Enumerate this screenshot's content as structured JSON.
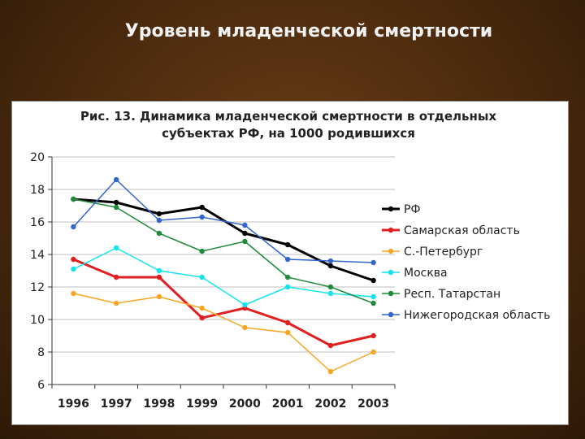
{
  "slide": {
    "title": "Уровень младенческой смертности"
  },
  "chart_data": {
    "type": "line",
    "title": "Рис. 13. Динамика младенческой смертности в отдельных субъектах РФ, на 1000 родившихся",
    "title_lines": [
      "Рис. 13. Динамика младенческой смертности в отдельных",
      "субъектах РФ, на 1000 родившихся"
    ],
    "categories": [
      "1996",
      "1997",
      "1998",
      "1999",
      "2000",
      "2001",
      "2002",
      "2003"
    ],
    "ylim": [
      6,
      20
    ],
    "yticks": [
      6,
      8,
      10,
      12,
      14,
      16,
      18,
      20
    ],
    "grid": true,
    "legend_position": "right",
    "series": [
      {
        "name": "РФ",
        "color": "#000000",
        "width": 3,
        "values": [
          17.4,
          17.2,
          16.5,
          16.9,
          15.3,
          14.6,
          13.3,
          12.4
        ]
      },
      {
        "name": "Самарская область",
        "color": "#e02020",
        "width": 3,
        "values": [
          13.7,
          12.6,
          12.6,
          10.1,
          10.7,
          9.8,
          8.4,
          9.0
        ]
      },
      {
        "name": "С.-Петербург",
        "color": "#f5a623",
        "width": 1.5,
        "values": [
          11.6,
          11.0,
          11.4,
          10.7,
          9.5,
          9.2,
          6.8,
          8.0
        ]
      },
      {
        "name": "Москва",
        "color": "#14e4ee",
        "width": 1.5,
        "values": [
          13.1,
          14.4,
          13.0,
          12.6,
          10.9,
          12.0,
          11.6,
          11.4
        ]
      },
      {
        "name": "Респ. Татарстан",
        "color": "#1f8a3a",
        "width": 1.5,
        "values": [
          17.4,
          16.9,
          15.3,
          14.2,
          14.8,
          12.6,
          12.0,
          11.0
        ]
      },
      {
        "name": "Нижегородская область",
        "color": "#3366cc",
        "width": 1.5,
        "values": [
          15.7,
          18.6,
          16.1,
          16.3,
          15.8,
          13.7,
          13.6,
          13.5
        ]
      }
    ]
  }
}
